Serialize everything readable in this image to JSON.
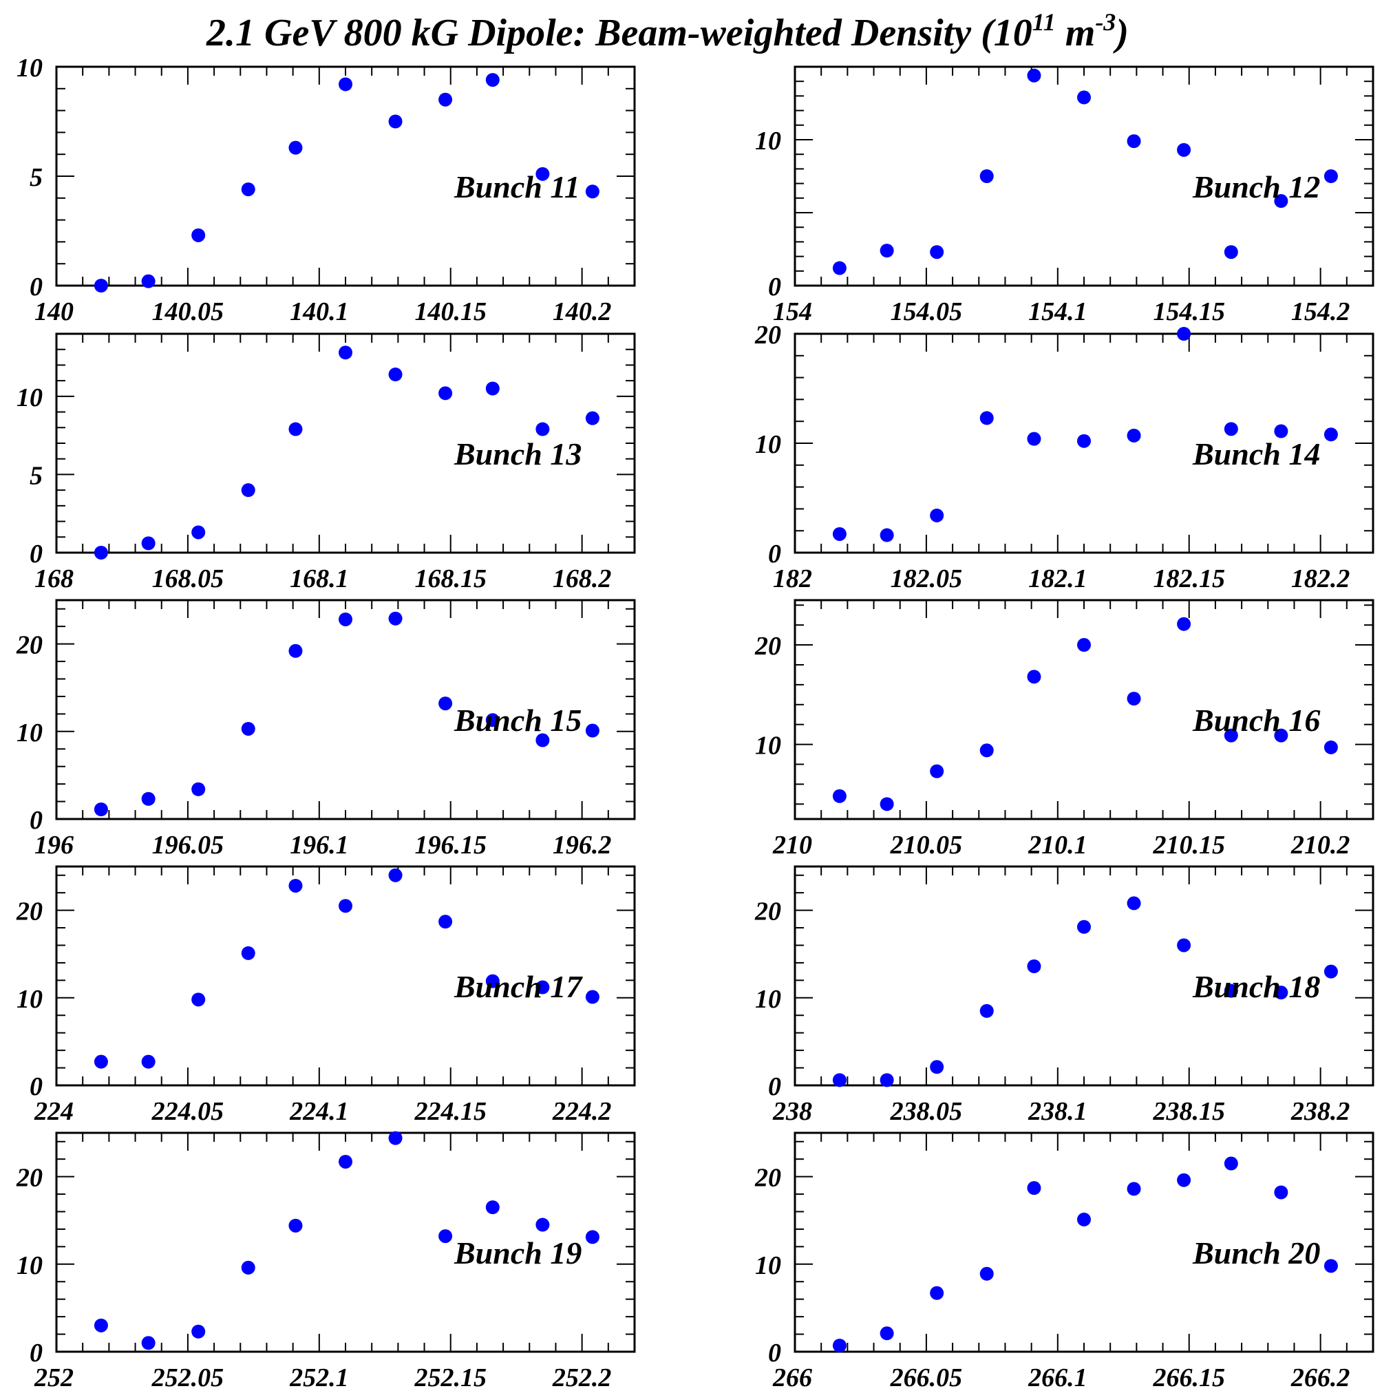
{
  "title": {
    "main": "2.1 GeV 800 kG Dipole: Beam-weighted Density  (10",
    "exp1": "11",
    "mid": " m",
    "exp2": "-3",
    "end": ")"
  },
  "chart_data": [
    {
      "type": "scatter",
      "label": "Bunch 11",
      "xlim": [
        140,
        140.22
      ],
      "ylim": [
        0,
        10
      ],
      "xticks": [
        140,
        140.05,
        140.1,
        140.15,
        140.2
      ],
      "xtick_labels": [
        "140",
        "140.05",
        "140.1",
        "140.15",
        "140.2"
      ],
      "yticks": [
        0,
        5,
        10
      ],
      "ytick_labels": [
        "0",
        "5",
        "10"
      ],
      "color": "#0000ff",
      "x": [
        140.017,
        140.035,
        140.054,
        140.073,
        140.091,
        140.11,
        140.129,
        140.148,
        140.166,
        140.185,
        140.204
      ],
      "y": [
        0,
        0.2,
        2.3,
        4.4,
        6.3,
        9.2,
        7.5,
        8.5,
        9.4,
        5.1,
        4.3
      ]
    },
    {
      "type": "scatter",
      "label": "Bunch 12",
      "xlim": [
        154,
        154.22
      ],
      "ylim": [
        0,
        15
      ],
      "xticks": [
        154,
        154.05,
        154.1,
        154.15,
        154.2
      ],
      "xtick_labels": [
        "154",
        "154.05",
        "154.1",
        "154.15",
        "154.2"
      ],
      "yticks": [
        0,
        10
      ],
      "ytick_labels": [
        "0",
        "10"
      ],
      "color": "#0000ff",
      "x": [
        154.017,
        154.035,
        154.054,
        154.073,
        154.091,
        154.11,
        154.129,
        154.148,
        154.166,
        154.185,
        154.204
      ],
      "y": [
        1.2,
        2.4,
        2.3,
        7.5,
        14.4,
        12.9,
        9.9,
        9.3,
        2.3,
        5.8,
        7.5
      ]
    },
    {
      "type": "scatter",
      "label": "Bunch 13",
      "xlim": [
        168,
        168.22
      ],
      "ylim": [
        0,
        14
      ],
      "xticks": [
        168,
        168.05,
        168.1,
        168.15,
        168.2
      ],
      "xtick_labels": [
        "168",
        "168.05",
        "168.1",
        "168.15",
        "168.2"
      ],
      "yticks": [
        0,
        5,
        10
      ],
      "ytick_labels": [
        "0",
        "5",
        "10"
      ],
      "color": "#0000ff",
      "x": [
        168.017,
        168.035,
        168.054,
        168.073,
        168.091,
        168.11,
        168.129,
        168.148,
        168.166,
        168.185,
        168.204
      ],
      "y": [
        0,
        0.6,
        1.3,
        4.0,
        7.9,
        12.8,
        11.4,
        10.2,
        10.5,
        7.9,
        8.6
      ]
    },
    {
      "type": "scatter",
      "label": "Bunch 14",
      "xlim": [
        182,
        182.22
      ],
      "ylim": [
        0,
        20
      ],
      "xticks": [
        182,
        182.05,
        182.1,
        182.15,
        182.2
      ],
      "xtick_labels": [
        "182",
        "182.05",
        "182.1",
        "182.15",
        "182.2"
      ],
      "yticks": [
        0,
        10,
        20
      ],
      "ytick_labels": [
        "0",
        "10",
        "20"
      ],
      "color": "#0000ff",
      "x": [
        182.017,
        182.035,
        182.054,
        182.073,
        182.091,
        182.11,
        182.129,
        182.148,
        182.166,
        182.185,
        182.204
      ],
      "y": [
        1.7,
        1.6,
        3.4,
        12.3,
        10.4,
        10.2,
        10.7,
        20.0,
        11.3,
        11.1,
        10.8
      ]
    },
    {
      "type": "scatter",
      "label": "Bunch 15",
      "xlim": [
        196,
        196.22
      ],
      "ylim": [
        0,
        25
      ],
      "xticks": [
        196,
        196.05,
        196.1,
        196.15,
        196.2
      ],
      "xtick_labels": [
        "196",
        "196.05",
        "196.1",
        "196.15",
        "196.2"
      ],
      "yticks": [
        0,
        10,
        20
      ],
      "ytick_labels": [
        "0",
        "10",
        "20"
      ],
      "color": "#0000ff",
      "x": [
        196.017,
        196.035,
        196.054,
        196.073,
        196.091,
        196.11,
        196.129,
        196.148,
        196.166,
        196.185,
        196.204
      ],
      "y": [
        1.1,
        2.3,
        3.4,
        10.3,
        19.2,
        22.8,
        22.9,
        13.2,
        11.3,
        9.0,
        10.1
      ]
    },
    {
      "type": "scatter",
      "label": "Bunch 16",
      "xlim": [
        210,
        210.22
      ],
      "ylim": [
        2.5,
        24.5
      ],
      "xticks": [
        210,
        210.05,
        210.1,
        210.15,
        210.2
      ],
      "xtick_labels": [
        "210",
        "210.05",
        "210.1",
        "210.15",
        "210.2"
      ],
      "yticks": [
        10,
        20
      ],
      "ytick_labels": [
        "10",
        "20"
      ],
      "color": "#0000ff",
      "x": [
        210.017,
        210.035,
        210.054,
        210.073,
        210.091,
        210.11,
        210.129,
        210.148,
        210.166,
        210.185,
        210.204
      ],
      "y": [
        4.8,
        4.0,
        7.3,
        9.4,
        16.8,
        20.0,
        14.6,
        22.1,
        10.9,
        10.9,
        9.7
      ]
    },
    {
      "type": "scatter",
      "label": "Bunch 17",
      "xlim": [
        224,
        224.22
      ],
      "ylim": [
        0,
        25
      ],
      "xticks": [
        224,
        224.05,
        224.1,
        224.15,
        224.2
      ],
      "xtick_labels": [
        "224",
        "224.05",
        "224.1",
        "224.15",
        "224.2"
      ],
      "yticks": [
        0,
        10,
        20
      ],
      "ytick_labels": [
        "0",
        "10",
        "20"
      ],
      "color": "#0000ff",
      "x": [
        224.017,
        224.035,
        224.054,
        224.073,
        224.091,
        224.11,
        224.129,
        224.148,
        224.166,
        224.185,
        224.204
      ],
      "y": [
        2.7,
        2.7,
        9.8,
        15.1,
        22.8,
        20.5,
        24.0,
        18.7,
        11.9,
        11.2,
        10.1
      ]
    },
    {
      "type": "scatter",
      "label": "Bunch 18",
      "xlim": [
        238,
        238.22
      ],
      "ylim": [
        0,
        25
      ],
      "xticks": [
        238,
        238.05,
        238.1,
        238.15,
        238.2
      ],
      "xtick_labels": [
        "238",
        "238.05",
        "238.1",
        "238.15",
        "238.2"
      ],
      "yticks": [
        0,
        10,
        20
      ],
      "ytick_labels": [
        "0",
        "10",
        "20"
      ],
      "color": "#0000ff",
      "x": [
        238.017,
        238.035,
        238.054,
        238.073,
        238.091,
        238.11,
        238.129,
        238.148,
        238.166,
        238.185,
        238.204
      ],
      "y": [
        0.6,
        0.6,
        2.1,
        8.5,
        13.6,
        18.1,
        20.8,
        16.0,
        10.8,
        10.6,
        13.0
      ]
    },
    {
      "type": "scatter",
      "label": "Bunch 19",
      "xlim": [
        252,
        252.22
      ],
      "ylim": [
        0,
        25
      ],
      "xticks": [
        252,
        252.05,
        252.1,
        252.15,
        252.2
      ],
      "xtick_labels": [
        "252",
        "252.05",
        "252.1",
        "252.15",
        "252.2"
      ],
      "yticks": [
        0,
        10,
        20
      ],
      "ytick_labels": [
        "0",
        "10",
        "20"
      ],
      "color": "#0000ff",
      "x": [
        252.017,
        252.035,
        252.054,
        252.073,
        252.091,
        252.11,
        252.129,
        252.148,
        252.166,
        252.185,
        252.204
      ],
      "y": [
        3.0,
        1.0,
        2.3,
        9.6,
        14.4,
        21.7,
        24.4,
        13.2,
        16.5,
        14.5,
        13.1
      ]
    },
    {
      "type": "scatter",
      "label": "Bunch 20",
      "xlim": [
        266,
        266.22
      ],
      "ylim": [
        0,
        25
      ],
      "xticks": [
        266,
        266.05,
        266.1,
        266.15,
        266.2
      ],
      "xtick_labels": [
        "266",
        "266.05",
        "266.1",
        "266.15",
        "266.2"
      ],
      "yticks": [
        0,
        10,
        20
      ],
      "ytick_labels": [
        "0",
        "10",
        "20"
      ],
      "color": "#0000ff",
      "x": [
        266.017,
        266.035,
        266.054,
        266.073,
        266.091,
        266.11,
        266.129,
        266.148,
        266.166,
        266.185,
        266.204
      ],
      "y": [
        0.7,
        2.1,
        6.7,
        8.9,
        18.7,
        15.1,
        18.6,
        19.6,
        21.5,
        18.2,
        9.8
      ]
    }
  ]
}
